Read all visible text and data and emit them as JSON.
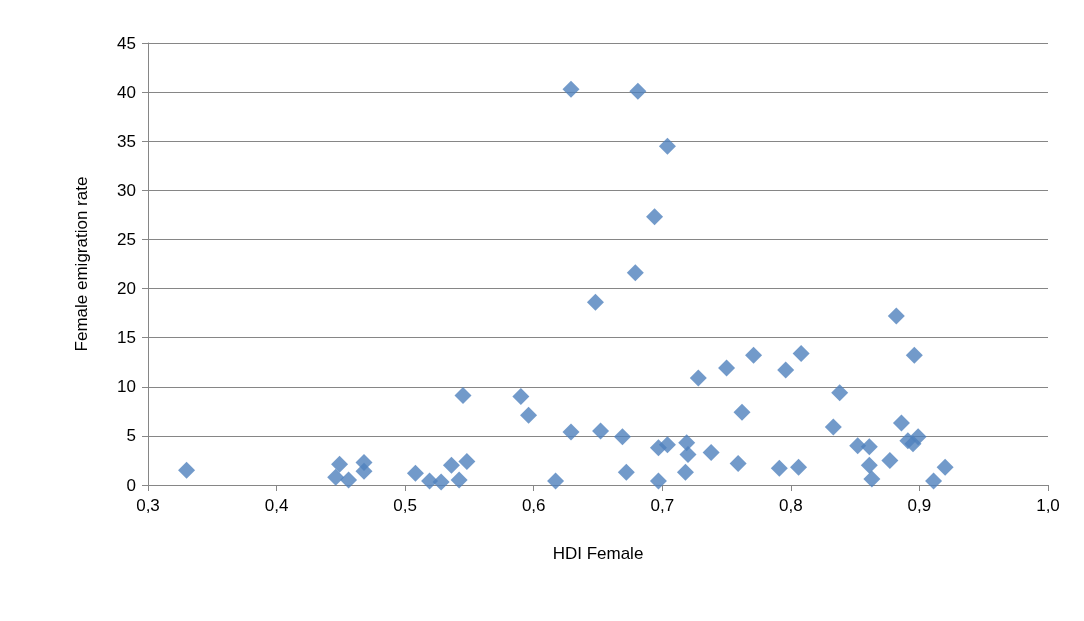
{
  "chart_data": {
    "type": "scatter",
    "xlabel": "HDI Female",
    "ylabel": "Female emigration rate",
    "marker": "diamond",
    "grid": "y",
    "color": "#4f81bd",
    "xlim": [
      0.3,
      1.0
    ],
    "xticks": [
      {
        "value": 0.3,
        "label": "0,3"
      },
      {
        "value": 0.4,
        "label": "0,4"
      },
      {
        "value": 0.5,
        "label": "0,5"
      },
      {
        "value": 0.6,
        "label": "0,6"
      },
      {
        "value": 0.7,
        "label": "0,7"
      },
      {
        "value": 0.8,
        "label": "0,8"
      },
      {
        "value": 0.9,
        "label": "0,9"
      },
      {
        "value": 1.0,
        "label": "1,0"
      }
    ],
    "ylim": [
      0,
      45
    ],
    "yticks": [
      0,
      5,
      10,
      15,
      20,
      25,
      30,
      35,
      40,
      45
    ],
    "x": [
      0.33,
      0.449,
      0.446,
      0.456,
      0.468,
      0.468,
      0.508,
      0.519,
      0.528,
      0.536,
      0.542,
      0.548,
      0.545,
      0.59,
      0.596,
      0.617,
      0.629,
      0.629,
      0.648,
      0.652,
      0.669,
      0.672,
      0.679,
      0.681,
      0.694,
      0.697,
      0.697,
      0.704,
      0.704,
      0.719,
      0.72,
      0.718,
      0.728,
      0.738,
      0.75,
      0.759,
      0.762,
      0.771,
      0.791,
      0.796,
      0.806,
      0.808,
      0.833,
      0.838,
      0.852,
      0.861,
      0.861,
      0.863,
      0.877,
      0.882,
      0.886,
      0.891,
      0.895,
      0.899,
      0.896,
      0.911,
      0.92
    ],
    "values": [
      1.5,
      2.1,
      0.8,
      0.5,
      2.3,
      1.4,
      1.2,
      0.4,
      0.3,
      2.0,
      0.5,
      2.4,
      9.1,
      9.0,
      7.1,
      0.4,
      5.4,
      40.3,
      18.6,
      5.5,
      4.9,
      1.3,
      21.6,
      40.1,
      27.3,
      0.4,
      3.8,
      34.5,
      4.1,
      4.3,
      3.1,
      1.3,
      10.9,
      3.3,
      11.9,
      2.2,
      7.4,
      13.2,
      1.7,
      11.7,
      1.8,
      13.4,
      5.9,
      9.4,
      4.0,
      3.9,
      2.0,
      0.6,
      2.5,
      17.2,
      6.3,
      4.5,
      4.2,
      4.9,
      13.2,
      0.4,
      1.8
    ]
  }
}
